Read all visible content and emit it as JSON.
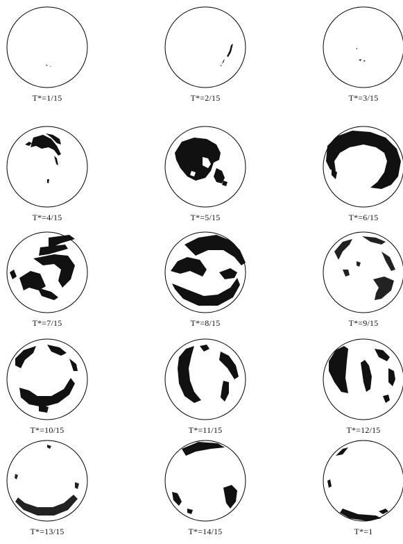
{
  "figure": {
    "panels": [
      {
        "label": "T*=1/15"
      },
      {
        "label": "T*=2/15"
      },
      {
        "label": "T*=3/15"
      },
      {
        "label": "T*=4/15"
      },
      {
        "label": "T*=5/15"
      },
      {
        "label": "T*=6/15"
      },
      {
        "label": "T*=7/15"
      },
      {
        "label": "T*=8/15"
      },
      {
        "label": "T*=9/15"
      },
      {
        "label": "T*=10/15"
      },
      {
        "label": "T*=11/15"
      },
      {
        "label": "T*=12/15"
      },
      {
        "label": "T*=13/15"
      },
      {
        "label": "T*=14/15"
      },
      {
        "label": "T*=1"
      }
    ],
    "colors": {
      "outline": "#000000",
      "pattern": "#111111"
    }
  }
}
